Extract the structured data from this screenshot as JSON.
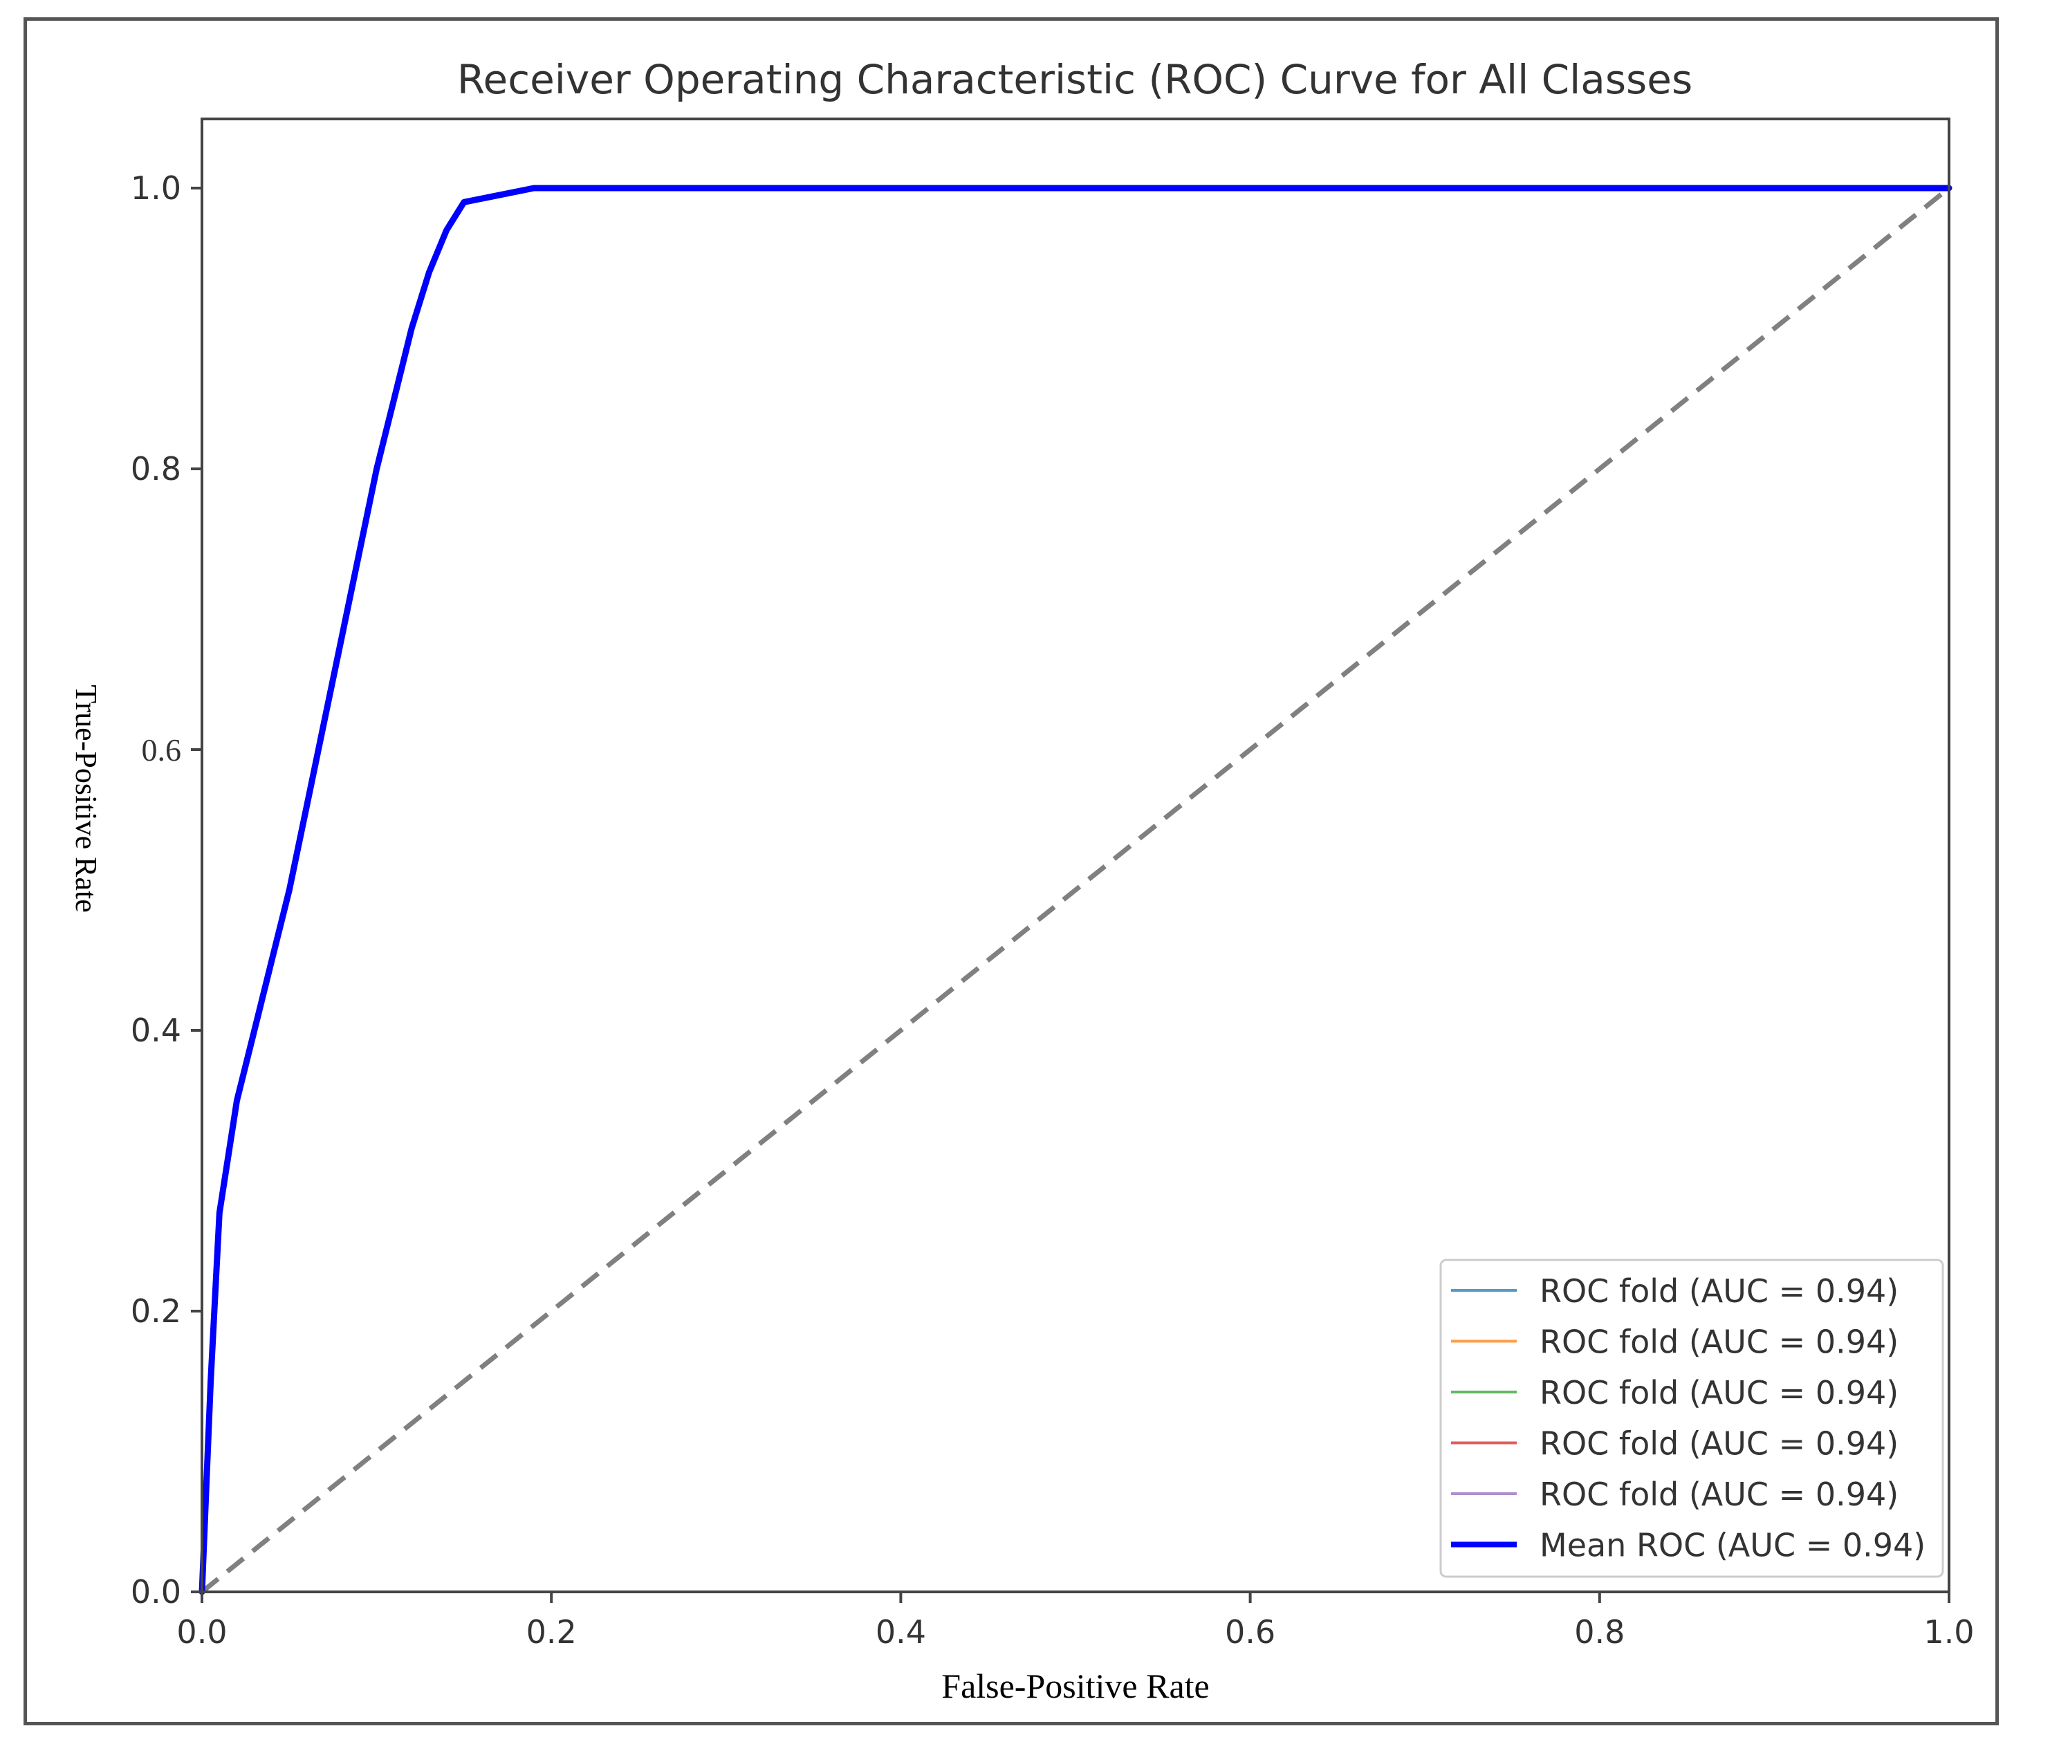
{
  "chart_data": {
    "type": "line",
    "title": "Receiver Operating Characteristic (ROC) Curve for All Classes",
    "xlabel": "False-Positive Rate",
    "ylabel": "True-Positive Rate",
    "xlim": [
      0.0,
      1.0
    ],
    "ylim": [
      0.0,
      1.0
    ],
    "x_ticks": [
      "0.0",
      "0.2",
      "0.4",
      "0.6",
      "0.8",
      "1.0"
    ],
    "y_ticks": [
      "0.0",
      "0.2",
      "0.4",
      "0.6",
      "0.8",
      "1.0"
    ],
    "grid": false,
    "legend_position": "lower-right",
    "series": [
      {
        "name": "ROC fold (AUC = 0.94)",
        "color": "#1f77b4",
        "style": "thin"
      },
      {
        "name": "ROC fold (AUC = 0.94)",
        "color": "#ff7f0e",
        "style": "thin"
      },
      {
        "name": "ROC fold (AUC = 0.94)",
        "color": "#2ca02c",
        "style": "thin"
      },
      {
        "name": "ROC fold (AUC = 0.94)",
        "color": "#d62728",
        "style": "thin"
      },
      {
        "name": "ROC fold (AUC = 0.94)",
        "color": "#9467bd",
        "style": "thin"
      },
      {
        "name": "Mean ROC (AUC = 0.94)",
        "color": "#0000ff",
        "style": "thick",
        "x": [
          0.0,
          0.005,
          0.01,
          0.02,
          0.03,
          0.04,
          0.05,
          0.06,
          0.07,
          0.08,
          0.09,
          0.1,
          0.11,
          0.12,
          0.13,
          0.14,
          0.15,
          0.17,
          0.19,
          0.22,
          0.3,
          0.5,
          0.7,
          0.9,
          1.0
        ],
        "y": [
          0.0,
          0.15,
          0.27,
          0.35,
          0.4,
          0.45,
          0.5,
          0.56,
          0.62,
          0.68,
          0.74,
          0.8,
          0.85,
          0.9,
          0.94,
          0.97,
          0.99,
          0.995,
          1.0,
          1.0,
          1.0,
          1.0,
          1.0,
          1.0,
          1.0
        ]
      }
    ],
    "diagonal": {
      "x": [
        0.0,
        1.0
      ],
      "y": [
        0.0,
        1.0
      ],
      "color": "#808080",
      "style": "dashed"
    }
  }
}
